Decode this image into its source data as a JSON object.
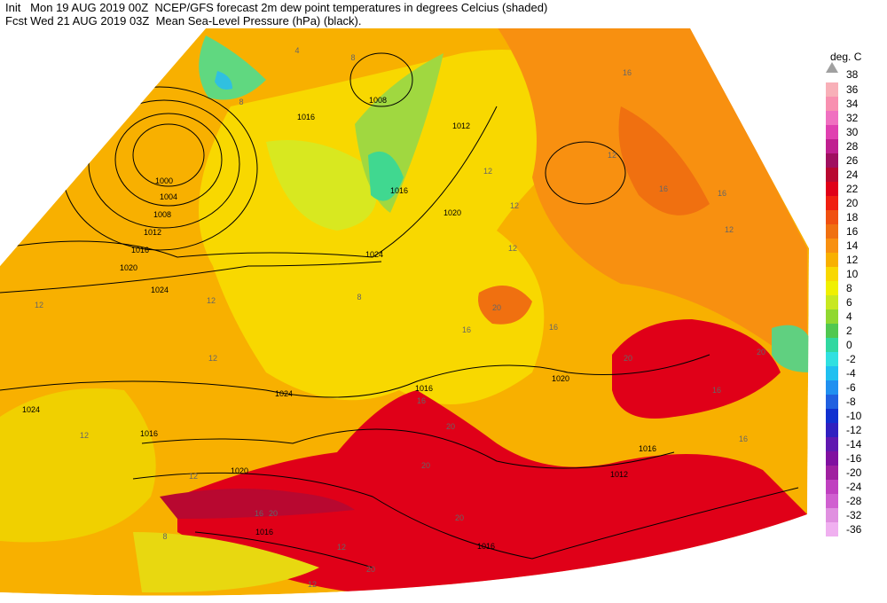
{
  "header": {
    "line1": "Init   Mon 19 AUG 2019 00Z  NCEP/GFS forecast 2m dew point temperatures in degrees Celcius (shaded)",
    "line2": "Fcst Wed 21 AUG 2019 03Z  Mean Sea-Level Pressure (hPa) (black)."
  },
  "legend": {
    "title": "deg. C",
    "labels": [
      38,
      36,
      34,
      32,
      30,
      28,
      26,
      24,
      22,
      20,
      18,
      16,
      14,
      12,
      10,
      8,
      6,
      4,
      2,
      0,
      -2,
      -4,
      -6,
      -8,
      -10,
      -12,
      -14,
      -16,
      -20,
      -24,
      -28,
      -32,
      -36
    ],
    "colors": [
      "#a0a0a0",
      "#f8b0b8",
      "#f890b0",
      "#f070c0",
      "#e040b0",
      "#c02090",
      "#a01060",
      "#b80830",
      "#e00018",
      "#f02010",
      "#f05010",
      "#f07010",
      "#f89010",
      "#f8b000",
      "#f8d800",
      "#f0f000",
      "#c8e820",
      "#90d830",
      "#50c850",
      "#30d8a0",
      "#30e0e0",
      "#20c0f0",
      "#2090f0",
      "#2060e0",
      "#1030d0",
      "#3020c0",
      "#6018b0",
      "#8010a0",
      "#a020a0",
      "#c040c0",
      "#d060d0",
      "#e090e0",
      "#f0b0f0"
    ]
  },
  "map": {
    "isobar_labels": [
      1000,
      1004,
      1008,
      1012,
      1016,
      1020,
      1024,
      1008,
      1016,
      1012,
      1016,
      1020,
      1024,
      1024,
      1016,
      1020,
      1016,
      1016,
      1016,
      1020,
      1016,
      1012,
      1024
    ],
    "dew_point_labels": [
      8,
      8,
      4,
      12,
      16,
      16,
      16,
      12,
      12,
      12,
      12,
      12,
      20,
      16,
      20,
      20,
      16,
      16,
      20,
      20,
      16,
      20,
      12,
      20,
      20,
      12,
      8,
      12,
      16,
      8,
      16,
      12,
      12,
      12
    ]
  }
}
